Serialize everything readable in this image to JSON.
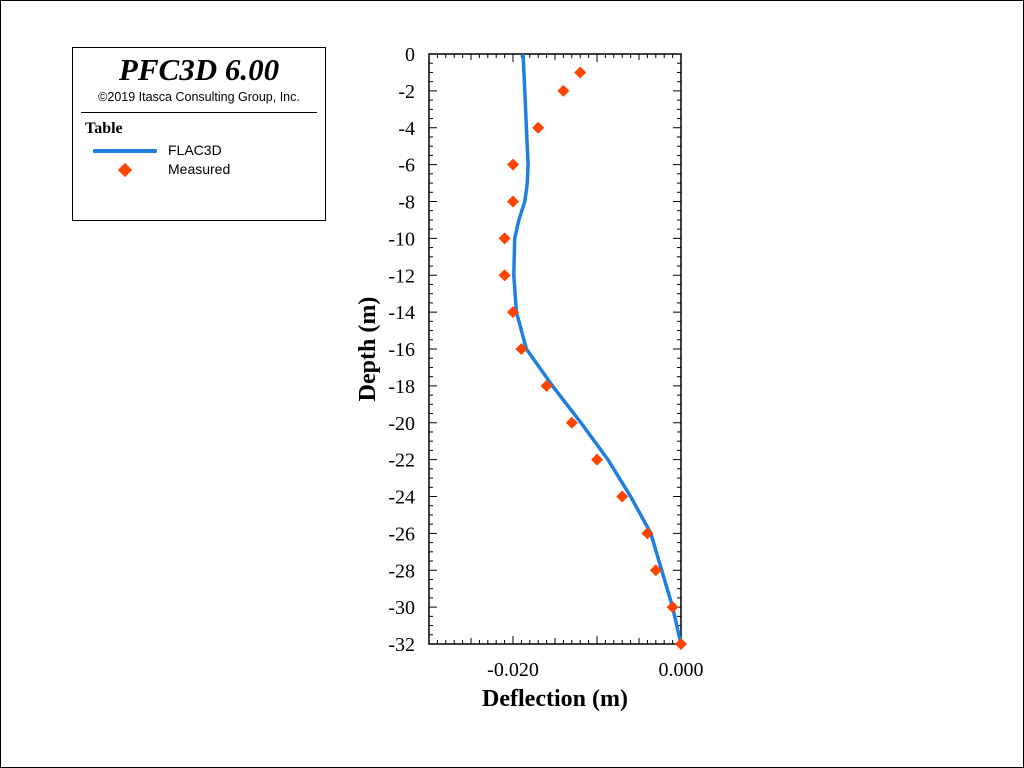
{
  "legend": {
    "app_title": "PFC3D 6.00",
    "copyright": "©2019 Itasca Consulting Group, Inc.",
    "heading": "Table",
    "entries": [
      {
        "label": "FLAC3D",
        "kind": "line",
        "color": "#1f7fe0"
      },
      {
        "label": "Measured",
        "kind": "marker",
        "color": "#ff4400"
      }
    ]
  },
  "chart_data": {
    "type": "line",
    "xlabel": "Deflection (m)",
    "ylabel": "Depth (m)",
    "xlim": [
      -0.03,
      0.0
    ],
    "ylim": [
      -32,
      0
    ],
    "x_ticks": [
      -0.02,
      0.0
    ],
    "x_tick_labels": [
      "-0.020",
      "0.000"
    ],
    "y_ticks": [
      0,
      -2,
      -4,
      -6,
      -8,
      -10,
      -12,
      -14,
      -16,
      -18,
      -20,
      -22,
      -24,
      -26,
      -28,
      -30,
      -32
    ],
    "y_tick_labels": [
      "0",
      "-2",
      "-4",
      "-6",
      "-8",
      "-10",
      "-12",
      "-14",
      "-16",
      "-18",
      "-20",
      "-22",
      "-24",
      "-26",
      "-28",
      "-30",
      "-32"
    ],
    "grid": false,
    "series": [
      {
        "name": "FLAC3D",
        "style": "line",
        "color": "#1f7fe0",
        "x": [
          -0.0188,
          -0.0186,
          -0.0184,
          -0.0182,
          -0.0183,
          -0.0186,
          -0.0193,
          -0.0198,
          -0.0199,
          -0.0196,
          -0.0184,
          -0.0153,
          -0.0119,
          -0.0087,
          -0.006,
          -0.0048,
          -0.0036,
          -0.0023,
          -0.001,
          0.0
        ],
        "y": [
          0,
          -2,
          -4,
          -6,
          -7,
          -8,
          -9,
          -10,
          -12,
          -14,
          -16,
          -18,
          -20,
          -22,
          -24,
          -25,
          -26,
          -28,
          -30,
          -32
        ]
      },
      {
        "name": "Measured",
        "style": "marker",
        "color": "#ff4400",
        "x": [
          -0.012,
          -0.014,
          -0.017,
          -0.02,
          -0.02,
          -0.021,
          -0.021,
          -0.02,
          -0.019,
          -0.016,
          -0.013,
          -0.01,
          -0.007,
          -0.004,
          -0.003,
          -0.001,
          0.0
        ],
        "y": [
          -1,
          -2,
          -4,
          -6,
          -8,
          -10,
          -12,
          -14,
          -16,
          -18,
          -20,
          -22,
          -24,
          -26,
          -28,
          -30,
          -32
        ]
      }
    ]
  }
}
